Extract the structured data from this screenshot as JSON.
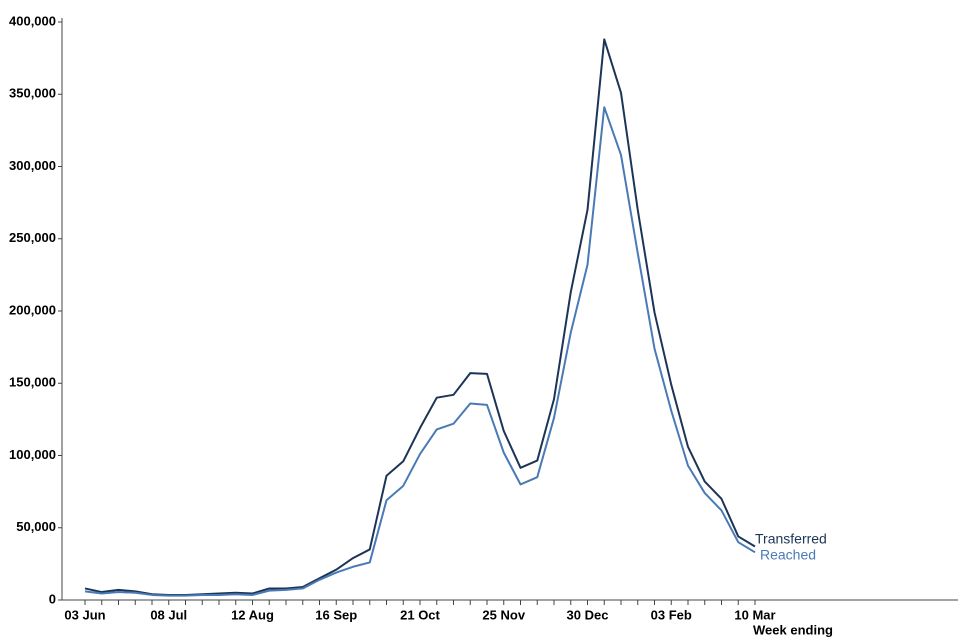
{
  "chart_data": {
    "type": "line",
    "x_label": "Week ending",
    "categories": [
      "03 Jun",
      null,
      null,
      null,
      null,
      "08 Jul",
      null,
      null,
      null,
      null,
      "12 Aug",
      null,
      null,
      null,
      null,
      "16 Sep",
      null,
      null,
      null,
      null,
      "21 Oct",
      null,
      null,
      null,
      null,
      "25 Nov",
      null,
      null,
      null,
      null,
      "30 Dec",
      null,
      null,
      null,
      null,
      "03 Feb",
      null,
      null,
      null,
      null,
      "10 Mar"
    ],
    "series": [
      {
        "name": "Transferred",
        "color": "#1c3557",
        "values": [
          8000,
          5500,
          7000,
          6000,
          4000,
          3500,
          3500,
          4000,
          4500,
          5000,
          4500,
          8000,
          8000,
          9000,
          15000,
          21000,
          29000,
          35000,
          86000,
          96000,
          119000,
          140000,
          142000,
          157000,
          156500,
          117000,
          91500,
          96500,
          139000,
          213000,
          270000,
          388000,
          351000,
          270000,
          199000,
          149000,
          106000,
          82000,
          70000,
          44000,
          37000
        ]
      },
      {
        "name": "Reached",
        "color": "#4a7ab5",
        "values": [
          6000,
          4500,
          5500,
          5000,
          3500,
          3000,
          3000,
          3500,
          3500,
          4000,
          3500,
          6500,
          7000,
          8000,
          14000,
          19000,
          23000,
          26000,
          69000,
          79000,
          101000,
          118000,
          122000,
          136000,
          135000,
          102000,
          80000,
          85000,
          126000,
          185000,
          232000,
          341000,
          308000,
          240000,
          174000,
          131000,
          93000,
          74000,
          62000,
          40000,
          33000
        ]
      }
    ],
    "ylim": [
      0,
      400000
    ],
    "yticks": [
      0,
      {
        "value": 50000,
        "label": "50,000"
      },
      {
        "value": 100000,
        "label": "100,000"
      },
      {
        "value": 150000,
        "label": "150,000"
      },
      {
        "value": 200000,
        "label": "200,000"
      },
      {
        "value": 250000,
        "label": "250,000"
      },
      {
        "value": 300000,
        "label": "300,000"
      },
      {
        "value": 350000,
        "label": "350,000"
      },
      {
        "value": 400000,
        "label": "400,000"
      }
    ],
    "grid": false
  }
}
